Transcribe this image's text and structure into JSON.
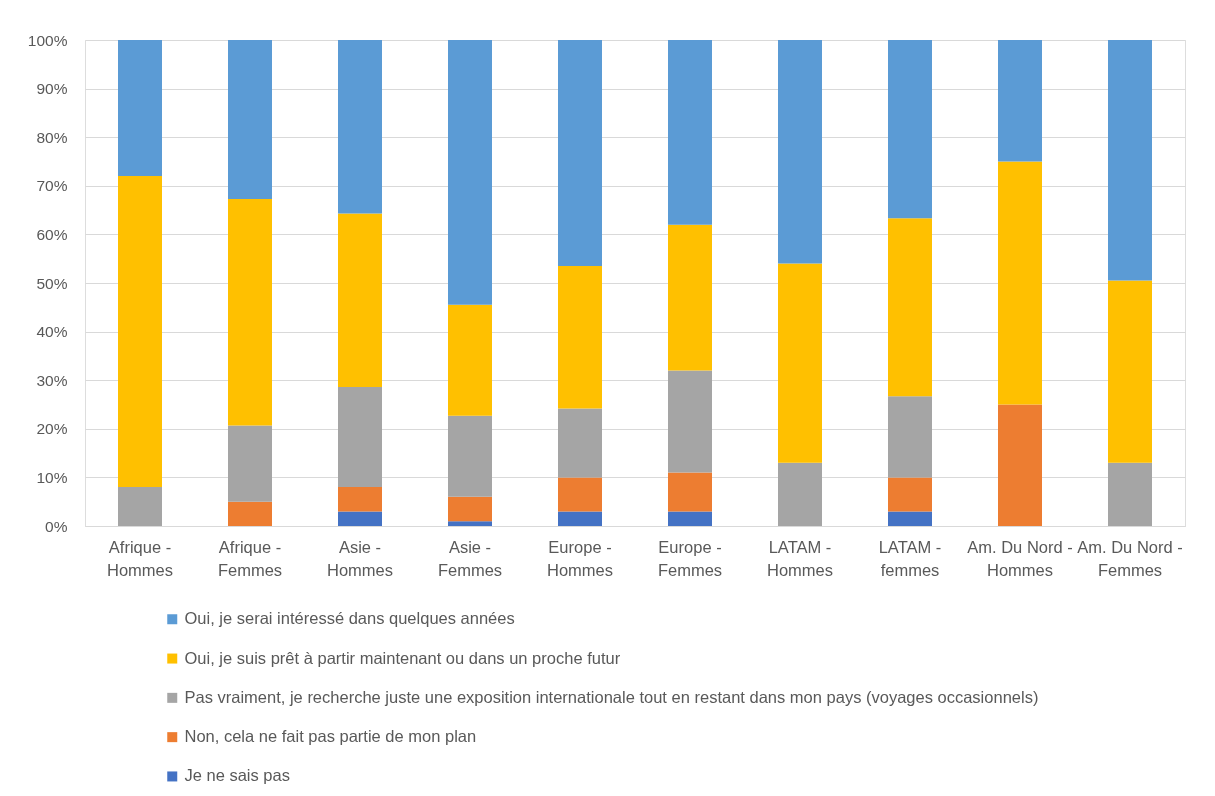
{
  "chart_data": {
    "type": "bar",
    "stacked": true,
    "categories": [
      "Afrique - Hommes",
      "Afrique - Femmes",
      "Asie - Hommes",
      "Asie - Femmes",
      "Europe - Hommes",
      "Europe - Femmes",
      "LATAM - Hommes",
      "LATAM - femmes",
      "Am. Du Nord - Hommes",
      "Am. Du Nord - Femmes"
    ],
    "series": [
      {
        "name": "Je ne sais pas",
        "color": "#4472c4",
        "values": [
          0,
          0,
          3,
          1,
          3,
          3,
          0,
          3,
          0,
          0
        ]
      },
      {
        "name": "Non, cela ne fait pas partie de mon plan",
        "color": "#ed7d31",
        "values": [
          0,
          5,
          5,
          5,
          7,
          8,
          0,
          7,
          25,
          0
        ]
      },
      {
        "name": "Pas vraiment, je recherche juste une exposition internationale tout en restant dans mon pays (voyages occasionnels)",
        "color": "#a5a5a5",
        "values": [
          8,
          15.7,
          20.6,
          16.7,
          14.2,
          21,
          13,
          16.7,
          0,
          13
        ]
      },
      {
        "name": "Oui, je suis prêt à partir maintenant ou dans un proche futur",
        "color": "#ffc000",
        "values": [
          64,
          46.6,
          35.7,
          22.8,
          29.3,
          30,
          41,
          36.6,
          50,
          37.5
        ]
      },
      {
        "name": "Oui, je serai intéressé dans quelques années",
        "color": "#5b9bd5",
        "values": [
          28,
          32.7,
          35.7,
          54.5,
          46.5,
          38,
          46,
          36.7,
          25,
          49.5
        ]
      }
    ],
    "ylim": [
      0,
      100
    ],
    "yticks": [
      {
        "value": 0,
        "label": "0%"
      },
      {
        "value": 10,
        "label": "10%"
      },
      {
        "value": 20,
        "label": "20%"
      },
      {
        "value": 30,
        "label": "30%"
      },
      {
        "value": 40,
        "label": "40%"
      },
      {
        "value": 50,
        "label": "50%"
      },
      {
        "value": 60,
        "label": "60%"
      },
      {
        "value": 70,
        "label": "70%"
      },
      {
        "value": 80,
        "label": "80%"
      },
      {
        "value": 90,
        "label": "90%"
      },
      {
        "value": 100,
        "label": "100%"
      }
    ],
    "grid": "y",
    "legend": "bottom"
  }
}
